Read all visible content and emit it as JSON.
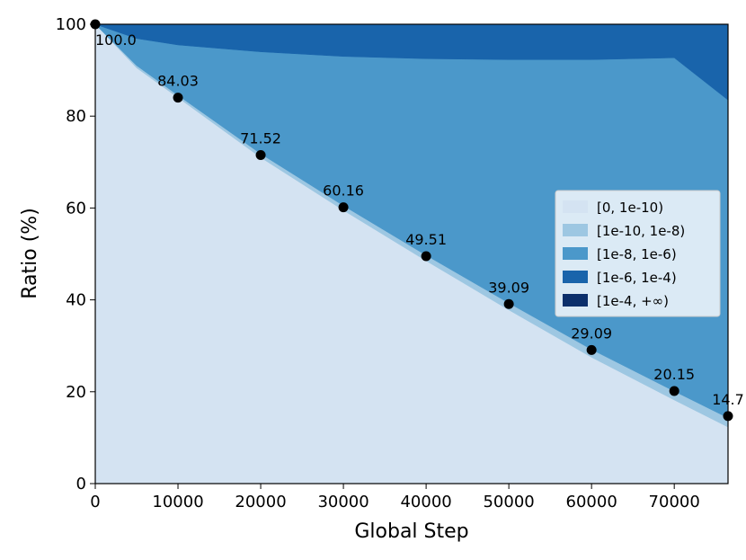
{
  "chart_data": {
    "type": "area",
    "xlabel": "Global Step",
    "ylabel": "Ratio (%)",
    "xlim": [
      0,
      76500
    ],
    "ylim": [
      0,
      100
    ],
    "x_ticks": [
      0,
      10000,
      20000,
      30000,
      40000,
      50000,
      60000,
      70000
    ],
    "y_ticks": [
      0,
      20,
      40,
      60,
      80,
      100
    ],
    "stack_order": "bottom-to-top",
    "x": [
      0,
      5000,
      10000,
      20000,
      30000,
      40000,
      50000,
      60000,
      70000,
      76500
    ],
    "series": [
      {
        "name": "[0, 1e-10)",
        "color": "#d4e3f2",
        "values": [
          100.0,
          90.5,
          84.03,
          71.0,
          59.5,
          48.5,
          37.8,
          27.5,
          18.2,
          12.3
        ]
      },
      {
        "name": "[1e-10, 1e-8)",
        "color": "#9dc7e2",
        "values": [
          0.0,
          0.5,
          0.5,
          0.8,
          1.0,
          1.2,
          1.5,
          1.7,
          1.9,
          2.0
        ]
      },
      {
        "name": "[1e-8, 1e-6)",
        "color": "#4b98ca",
        "values": [
          0.0,
          5.9,
          10.97,
          22.2,
          32.5,
          42.8,
          53.0,
          63.1,
          72.6,
          69.2
        ]
      },
      {
        "name": "[1e-6, 1e-4)",
        "color": "#1964ab",
        "values": [
          0.0,
          3.1,
          4.5,
          6.0,
          7.0,
          7.5,
          7.7,
          7.7,
          7.3,
          16.5
        ]
      },
      {
        "name": "[1e-4, +∞)",
        "color": "#0b2f6b",
        "values": [
          0,
          0,
          0,
          0,
          0,
          0,
          0,
          0,
          0,
          0
        ]
      }
    ],
    "points": {
      "x": [
        0,
        10000,
        20000,
        30000,
        40000,
        50000,
        60000,
        70000,
        76500
      ],
      "y": [
        100.0,
        84.03,
        71.52,
        60.16,
        49.51,
        39.09,
        29.09,
        20.15,
        14.7
      ],
      "labels": [
        "100.0",
        "84.03",
        "71.52",
        "60.16",
        "49.51",
        "39.09",
        "29.09",
        "20.15",
        "14.7"
      ]
    },
    "legend": {
      "placement": "center-right"
    }
  }
}
